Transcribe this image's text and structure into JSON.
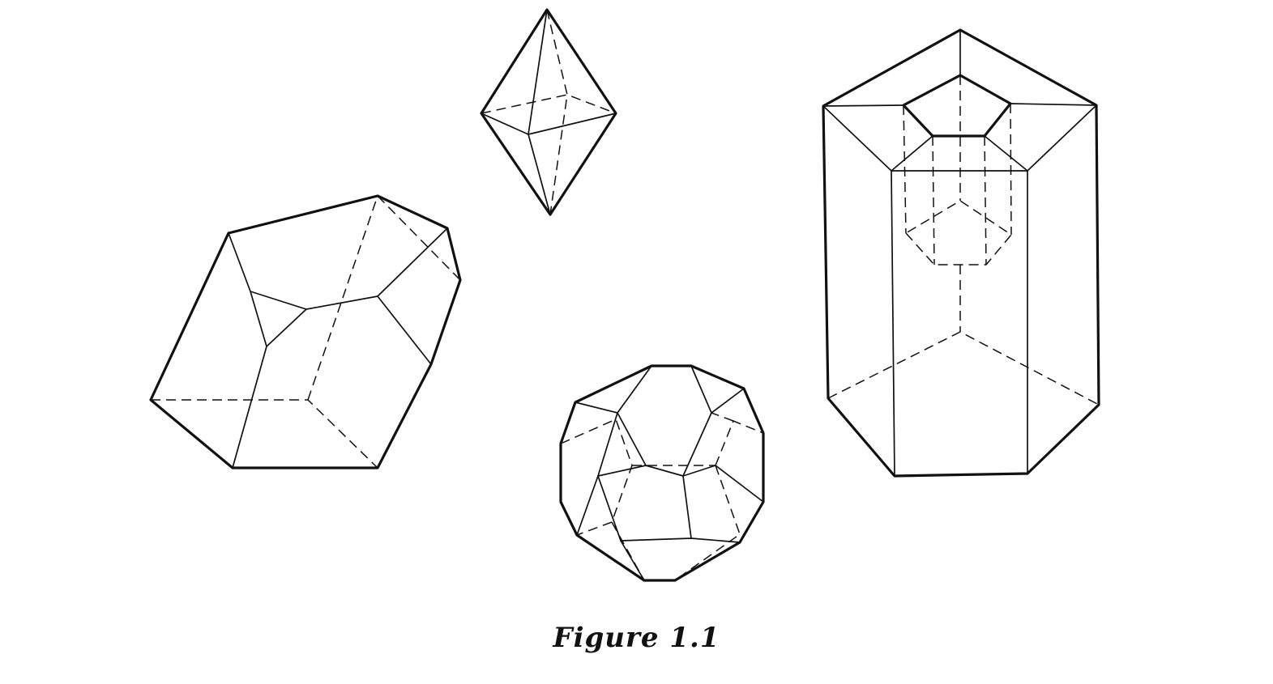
{
  "figure": {
    "caption": "Figure 1.1",
    "stroke_color": "#111111",
    "background": "#ffffff",
    "solids": [
      {
        "name": "irregular-polyhedron",
        "hidden_edges": "dashed"
      },
      {
        "name": "octahedron",
        "hidden_edges": "dashed"
      },
      {
        "name": "dodecahedron",
        "hidden_edges": "dashed"
      },
      {
        "name": "hollow-pentagonal-prism",
        "hidden_edges": "dashed"
      }
    ]
  }
}
